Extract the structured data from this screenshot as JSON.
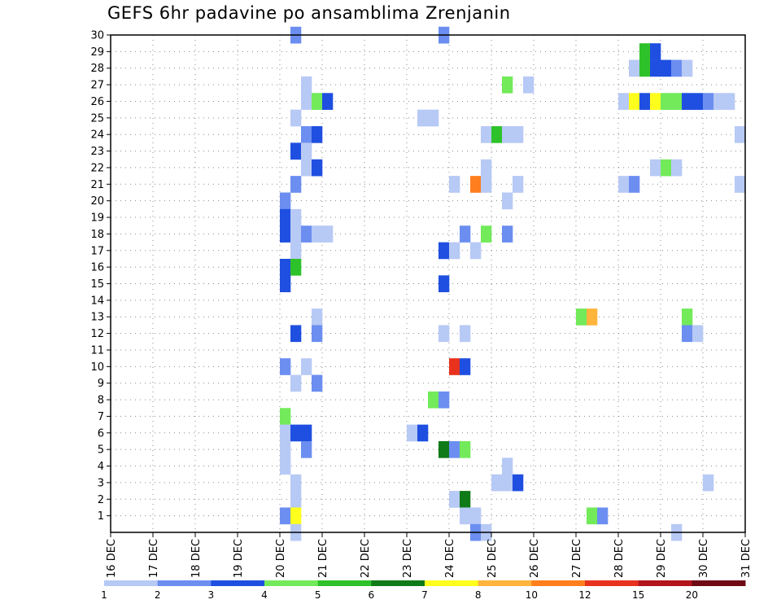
{
  "chart_data": {
    "type": "heatmap",
    "title": "GEFS 6hr padavine po ansamblima Zrenjanin",
    "xlabel": "",
    "ylabel": "",
    "members": [
      1,
      2,
      3,
      4,
      5,
      6,
      7,
      8,
      9,
      10,
      11,
      12,
      13,
      14,
      15,
      16,
      17,
      18,
      19,
      20,
      21,
      22,
      23,
      24,
      25,
      26,
      27,
      28,
      29,
      30
    ],
    "x_ticks": [
      "16 DEC",
      "17 DEC",
      "18 DEC",
      "19 DEC",
      "20 DEC",
      "21 DEC",
      "22 DEC",
      "23 DEC",
      "24 DEC",
      "25 DEC",
      "26 DEC",
      "27 DEC",
      "28 DEC",
      "29 DEC",
      "30 DEC",
      "31 DEC"
    ],
    "x_range_days": [
      0,
      15
    ],
    "y_range_members": [
      0,
      30
    ],
    "grid": true,
    "colorbar": {
      "levels": [
        "1",
        "2",
        "3",
        "4",
        "5",
        "6",
        "7",
        "8",
        "10",
        "12",
        "15",
        "20"
      ],
      "colors": [
        "#b7c9f5",
        "#6b8ef0",
        "#1f4fe0",
        "#72ea5a",
        "#2ec22a",
        "#0f7a18",
        "#ffff1e",
        "#ffb43c",
        "#ff7f1e",
        "#e8321e",
        "#b4141e",
        "#6e0a14"
      ]
    },
    "cells": [
      {
        "m": 30,
        "t": 4.25,
        "c": 1
      },
      {
        "m": 30,
        "t": 7.75,
        "c": 1
      },
      {
        "m": 29,
        "t": 12.5,
        "c": 4
      },
      {
        "m": 29,
        "t": 12.75,
        "c": 2
      },
      {
        "m": 28,
        "t": 12.25,
        "c": 0
      },
      {
        "m": 28,
        "t": 12.5,
        "c": 4
      },
      {
        "m": 28,
        "t": 12.75,
        "c": 2
      },
      {
        "m": 28,
        "t": 13,
        "c": 2
      },
      {
        "m": 28,
        "t": 13.25,
        "c": 1
      },
      {
        "m": 28,
        "t": 13.5,
        "c": 0
      },
      {
        "m": 27,
        "t": 4.5,
        "c": 0
      },
      {
        "m": 27,
        "t": 9.25,
        "c": 3
      },
      {
        "m": 27,
        "t": 9.75,
        "c": 0
      },
      {
        "m": 26,
        "t": 4.5,
        "c": 0
      },
      {
        "m": 26,
        "t": 4.75,
        "c": 3
      },
      {
        "m": 26,
        "t": 5,
        "c": 2
      },
      {
        "m": 26,
        "t": 12,
        "c": 0
      },
      {
        "m": 26,
        "t": 12.25,
        "c": 6
      },
      {
        "m": 26,
        "t": 12.5,
        "c": 2
      },
      {
        "m": 26,
        "t": 12.75,
        "c": 6
      },
      {
        "m": 26,
        "t": 13,
        "c": 3
      },
      {
        "m": 26,
        "t": 13.25,
        "c": 3
      },
      {
        "m": 26,
        "t": 13.5,
        "c": 2
      },
      {
        "m": 26,
        "t": 13.75,
        "c": 2
      },
      {
        "m": 26,
        "t": 14,
        "c": 1
      },
      {
        "m": 26,
        "t": 14.25,
        "c": 0
      },
      {
        "m": 26,
        "t": 14.5,
        "c": 0
      },
      {
        "m": 25,
        "t": 4.25,
        "c": 0
      },
      {
        "m": 25,
        "t": 7.25,
        "c": 0
      },
      {
        "m": 25,
        "t": 7.5,
        "c": 0
      },
      {
        "m": 24,
        "t": 4.5,
        "c": 1
      },
      {
        "m": 24,
        "t": 4.75,
        "c": 2
      },
      {
        "m": 24,
        "t": 8.75,
        "c": 0
      },
      {
        "m": 24,
        "t": 9,
        "c": 4
      },
      {
        "m": 24,
        "t": 9.25,
        "c": 0
      },
      {
        "m": 24,
        "t": 9.5,
        "c": 0
      },
      {
        "m": 24,
        "t": 14.75,
        "c": 0
      },
      {
        "m": 23,
        "t": 4.25,
        "c": 2
      },
      {
        "m": 23,
        "t": 4.5,
        "c": 0
      },
      {
        "m": 22,
        "t": 4.5,
        "c": 0
      },
      {
        "m": 22,
        "t": 4.75,
        "c": 2
      },
      {
        "m": 22,
        "t": 8.75,
        "c": 0
      },
      {
        "m": 22,
        "t": 12.75,
        "c": 0
      },
      {
        "m": 22,
        "t": 13,
        "c": 3
      },
      {
        "m": 22,
        "t": 13.25,
        "c": 0
      },
      {
        "m": 21,
        "t": 4.25,
        "c": 1
      },
      {
        "m": 21,
        "t": 8,
        "c": 0
      },
      {
        "m": 21,
        "t": 8.5,
        "c": 8
      },
      {
        "m": 21,
        "t": 8.75,
        "c": 0
      },
      {
        "m": 21,
        "t": 9.5,
        "c": 0
      },
      {
        "m": 21,
        "t": 12,
        "c": 0
      },
      {
        "m": 21,
        "t": 12.25,
        "c": 1
      },
      {
        "m": 21,
        "t": 14.75,
        "c": 0
      },
      {
        "m": 20,
        "t": 4,
        "c": 1
      },
      {
        "m": 20,
        "t": 9.25,
        "c": 0
      },
      {
        "m": 19,
        "t": 4,
        "c": 2
      },
      {
        "m": 19,
        "t": 4.25,
        "c": 0
      },
      {
        "m": 18,
        "t": 4,
        "c": 2
      },
      {
        "m": 18,
        "t": 4.25,
        "c": 0
      },
      {
        "m": 18,
        "t": 4.5,
        "c": 1
      },
      {
        "m": 18,
        "t": 4.75,
        "c": 0
      },
      {
        "m": 18,
        "t": 5,
        "c": 0
      },
      {
        "m": 18,
        "t": 8.25,
        "c": 1
      },
      {
        "m": 18,
        "t": 8.75,
        "c": 3
      },
      {
        "m": 18,
        "t": 9.25,
        "c": 1
      },
      {
        "m": 17,
        "t": 4.25,
        "c": 0
      },
      {
        "m": 17,
        "t": 7.75,
        "c": 2
      },
      {
        "m": 17,
        "t": 8,
        "c": 0
      },
      {
        "m": 17,
        "t": 8.5,
        "c": 0
      },
      {
        "m": 16,
        "t": 4,
        "c": 2
      },
      {
        "m": 16,
        "t": 4.25,
        "c": 4
      },
      {
        "m": 15,
        "t": 4,
        "c": 2
      },
      {
        "m": 15,
        "t": 7.75,
        "c": 2
      },
      {
        "m": 13,
        "t": 4.75,
        "c": 0
      },
      {
        "m": 13,
        "t": 11,
        "c": 3
      },
      {
        "m": 13,
        "t": 11.25,
        "c": 7
      },
      {
        "m": 13,
        "t": 13.5,
        "c": 3
      },
      {
        "m": 12,
        "t": 4.25,
        "c": 2
      },
      {
        "m": 12,
        "t": 4.75,
        "c": 1
      },
      {
        "m": 12,
        "t": 7.75,
        "c": 0
      },
      {
        "m": 12,
        "t": 8.25,
        "c": 0
      },
      {
        "m": 12,
        "t": 13.5,
        "c": 1
      },
      {
        "m": 12,
        "t": 13.75,
        "c": 0
      },
      {
        "m": 10,
        "t": 4,
        "c": 1
      },
      {
        "m": 10,
        "t": 4.5,
        "c": 0
      },
      {
        "m": 10,
        "t": 8,
        "c": 9
      },
      {
        "m": 10,
        "t": 8.25,
        "c": 2
      },
      {
        "m": 9,
        "t": 4.25,
        "c": 0
      },
      {
        "m": 9,
        "t": 4.75,
        "c": 1
      },
      {
        "m": 8,
        "t": 7.5,
        "c": 3
      },
      {
        "m": 8,
        "t": 7.75,
        "c": 1
      },
      {
        "m": 7,
        "t": 4,
        "c": 3
      },
      {
        "m": 6,
        "t": 4,
        "c": 0
      },
      {
        "m": 6,
        "t": 4.25,
        "c": 2
      },
      {
        "m": 6,
        "t": 4.5,
        "c": 2
      },
      {
        "m": 6,
        "t": 7,
        "c": 0
      },
      {
        "m": 6,
        "t": 7.25,
        "c": 2
      },
      {
        "m": 5,
        "t": 4,
        "c": 0
      },
      {
        "m": 5,
        "t": 4.5,
        "c": 1
      },
      {
        "m": 5,
        "t": 7.75,
        "c": 5
      },
      {
        "m": 5,
        "t": 8,
        "c": 1
      },
      {
        "m": 5,
        "t": 8.25,
        "c": 3
      },
      {
        "m": 4,
        "t": 4,
        "c": 0
      },
      {
        "m": 4,
        "t": 9.25,
        "c": 0
      },
      {
        "m": 3,
        "t": 4.25,
        "c": 0
      },
      {
        "m": 3,
        "t": 9,
        "c": 0
      },
      {
        "m": 3,
        "t": 9.25,
        "c": 0
      },
      {
        "m": 3,
        "t": 9.5,
        "c": 2
      },
      {
        "m": 3,
        "t": 14,
        "c": 0
      },
      {
        "m": 2,
        "t": 4.25,
        "c": 0
      },
      {
        "m": 2,
        "t": 8,
        "c": 0
      },
      {
        "m": 2,
        "t": 8.25,
        "c": 5
      },
      {
        "m": 1,
        "t": 4,
        "c": 1
      },
      {
        "m": 1,
        "t": 4.25,
        "c": 6
      },
      {
        "m": 1,
        "t": 8.25,
        "c": 0
      },
      {
        "m": 1,
        "t": 8.5,
        "c": 0
      },
      {
        "m": 1,
        "t": 11.25,
        "c": 3
      },
      {
        "m": 1,
        "t": 11.5,
        "c": 1
      },
      {
        "m": 0,
        "t": 4.25,
        "c": 0
      },
      {
        "m": 0,
        "t": 8.5,
        "c": 1
      },
      {
        "m": 0,
        "t": 8.75,
        "c": 0
      },
      {
        "m": 0,
        "t": 13.25,
        "c": 0
      }
    ]
  }
}
